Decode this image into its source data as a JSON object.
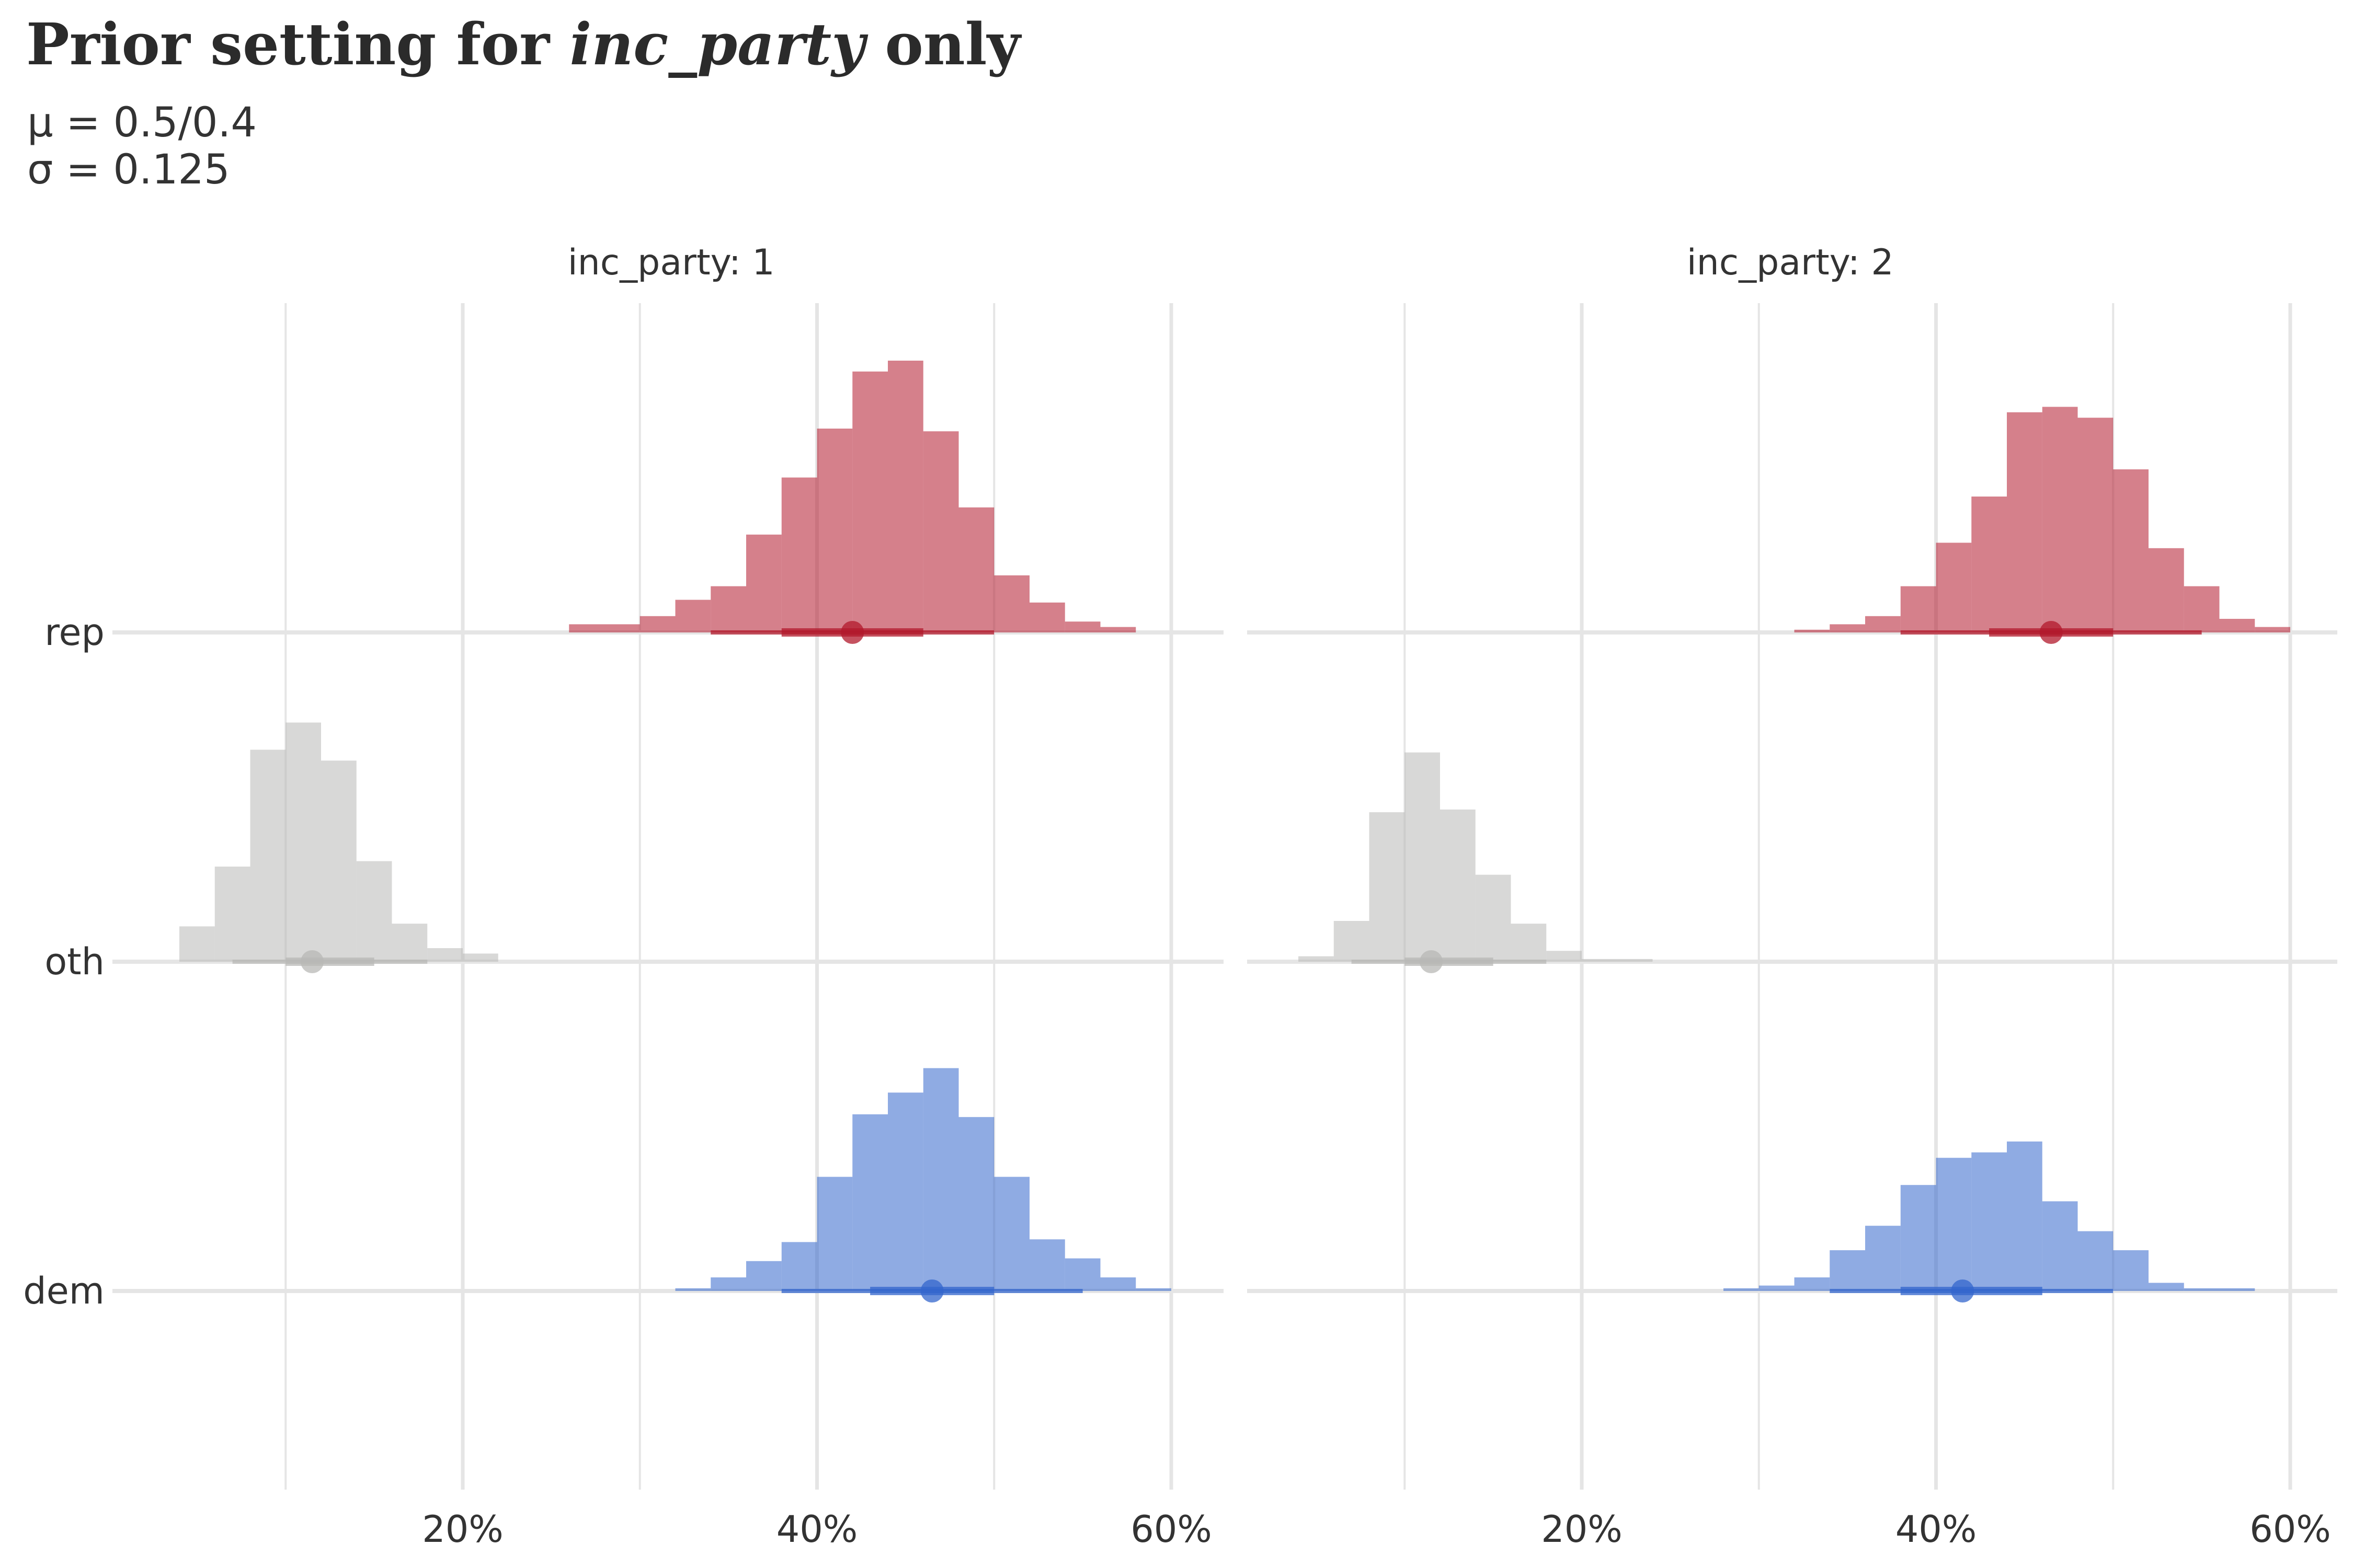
{
  "title": {
    "prefix": "Prior setting for ",
    "variable": "inc_party",
    "suffix": " only"
  },
  "subtitle": {
    "line1": "μ = 0.5/0.4",
    "line2": "σ = 0.125"
  },
  "colors": {
    "rep": "#B2182B",
    "oth": "#B8B8B6",
    "dem": "#3366CC",
    "grid": "#E5E5E5"
  },
  "chart_data": {
    "type": "histogram with point-interval",
    "x_axis": {
      "xlim": [
        0.0,
        0.6
      ],
      "ticks": [
        0.2,
        0.4,
        0.6
      ],
      "tick_labels": [
        "20%",
        "40%",
        "60%"
      ],
      "minor_ticks": [
        0.1,
        0.3,
        0.5
      ],
      "bin_width": 0.02
    },
    "y_axis": {
      "categories": [
        "rep",
        "oth",
        "dem"
      ]
    },
    "grid": true,
    "facets": [
      {
        "label": "inc_party: 1",
        "rows": [
          {
            "category": "rep",
            "bin_start": 0.26,
            "densities": [
              0.03,
              0.03,
              0.06,
              0.12,
              0.17,
              0.36,
              0.57,
              0.75,
              0.96,
              1.0,
              0.74,
              0.46,
              0.21,
              0.11,
              0.04,
              0.02
            ],
            "median": 0.42,
            "interval_66": [
              0.38,
              0.46
            ],
            "interval_95": [
              0.34,
              0.5
            ]
          },
          {
            "category": "oth",
            "bin_start": 0.04,
            "densities": [
              0.13,
              0.35,
              0.78,
              0.88,
              0.74,
              0.37,
              0.14,
              0.05,
              0.03
            ],
            "median": 0.115,
            "interval_66": [
              0.1,
              0.15
            ],
            "interval_95": [
              0.07,
              0.18
            ]
          },
          {
            "category": "dem",
            "bin_start": 0.32,
            "densities": [
              0.01,
              0.05,
              0.11,
              0.18,
              0.42,
              0.65,
              0.73,
              0.82,
              0.64,
              0.42,
              0.19,
              0.12,
              0.05,
              0.01
            ],
            "median": 0.465,
            "interval_66": [
              0.43,
              0.5
            ],
            "interval_95": [
              0.38,
              0.55
            ]
          }
        ]
      },
      {
        "label": "inc_party: 2",
        "rows": [
          {
            "category": "rep",
            "bin_start": 0.32,
            "densities": [
              0.01,
              0.03,
              0.06,
              0.17,
              0.33,
              0.5,
              0.81,
              0.83,
              0.79,
              0.6,
              0.31,
              0.17,
              0.05,
              0.02
            ],
            "median": 0.465,
            "interval_66": [
              0.43,
              0.5
            ],
            "interval_95": [
              0.38,
              0.55
            ]
          },
          {
            "category": "oth",
            "bin_start": 0.04,
            "densities": [
              0.02,
              0.15,
              0.55,
              0.77,
              0.56,
              0.32,
              0.14,
              0.04,
              0.01,
              0.01
            ],
            "median": 0.115,
            "interval_66": [
              0.1,
              0.15
            ],
            "interval_95": [
              0.07,
              0.18
            ]
          },
          {
            "category": "dem",
            "bin_start": 0.28,
            "densities": [
              0.01,
              0.02,
              0.05,
              0.15,
              0.24,
              0.39,
              0.49,
              0.51,
              0.55,
              0.33,
              0.22,
              0.15,
              0.03,
              0.01,
              0.01
            ],
            "median": 0.415,
            "interval_66": [
              0.38,
              0.46
            ],
            "interval_95": [
              0.34,
              0.5
            ]
          }
        ]
      }
    ]
  }
}
